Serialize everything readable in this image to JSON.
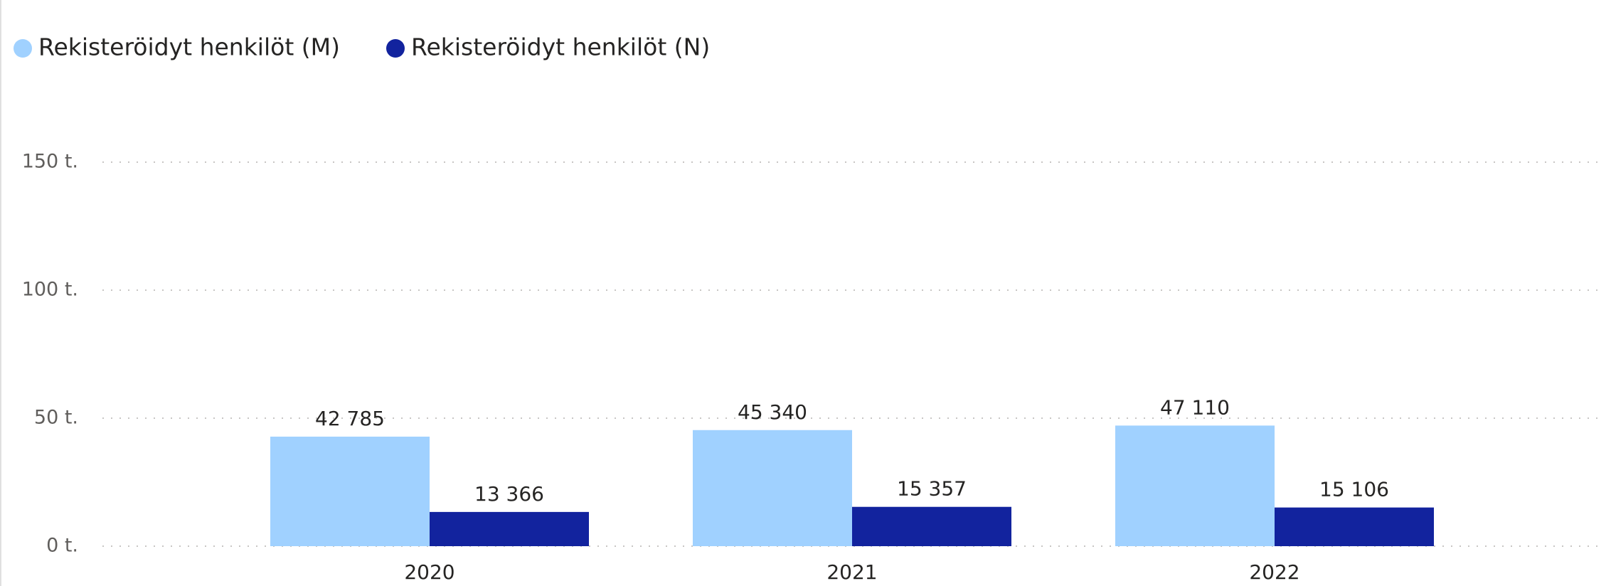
{
  "chart_data": {
    "type": "bar",
    "categories": [
      "2020",
      "2021",
      "2022"
    ],
    "series": [
      {
        "name": "Rekisteröidyt henkilöt (M)",
        "color": "#a0d1ff",
        "values": [
          42785,
          45340,
          47110
        ],
        "value_labels": [
          "42 785",
          "45 340",
          "47 110"
        ]
      },
      {
        "name": "Rekisteröidyt henkilöt (N)",
        "color": "#12239e",
        "values": [
          13366,
          15357,
          15106
        ],
        "value_labels": [
          "13 366",
          "15 357",
          "15 106"
        ]
      }
    ],
    "ylim": [
      0,
      150000
    ],
    "yticks": [
      {
        "value": 0,
        "label": "0 t."
      },
      {
        "value": 50000,
        "label": "50 t."
      },
      {
        "value": 100000,
        "label": "100 t."
      },
      {
        "value": 150000,
        "label": "150 t."
      }
    ],
    "grid": true,
    "legend": "top-left"
  }
}
